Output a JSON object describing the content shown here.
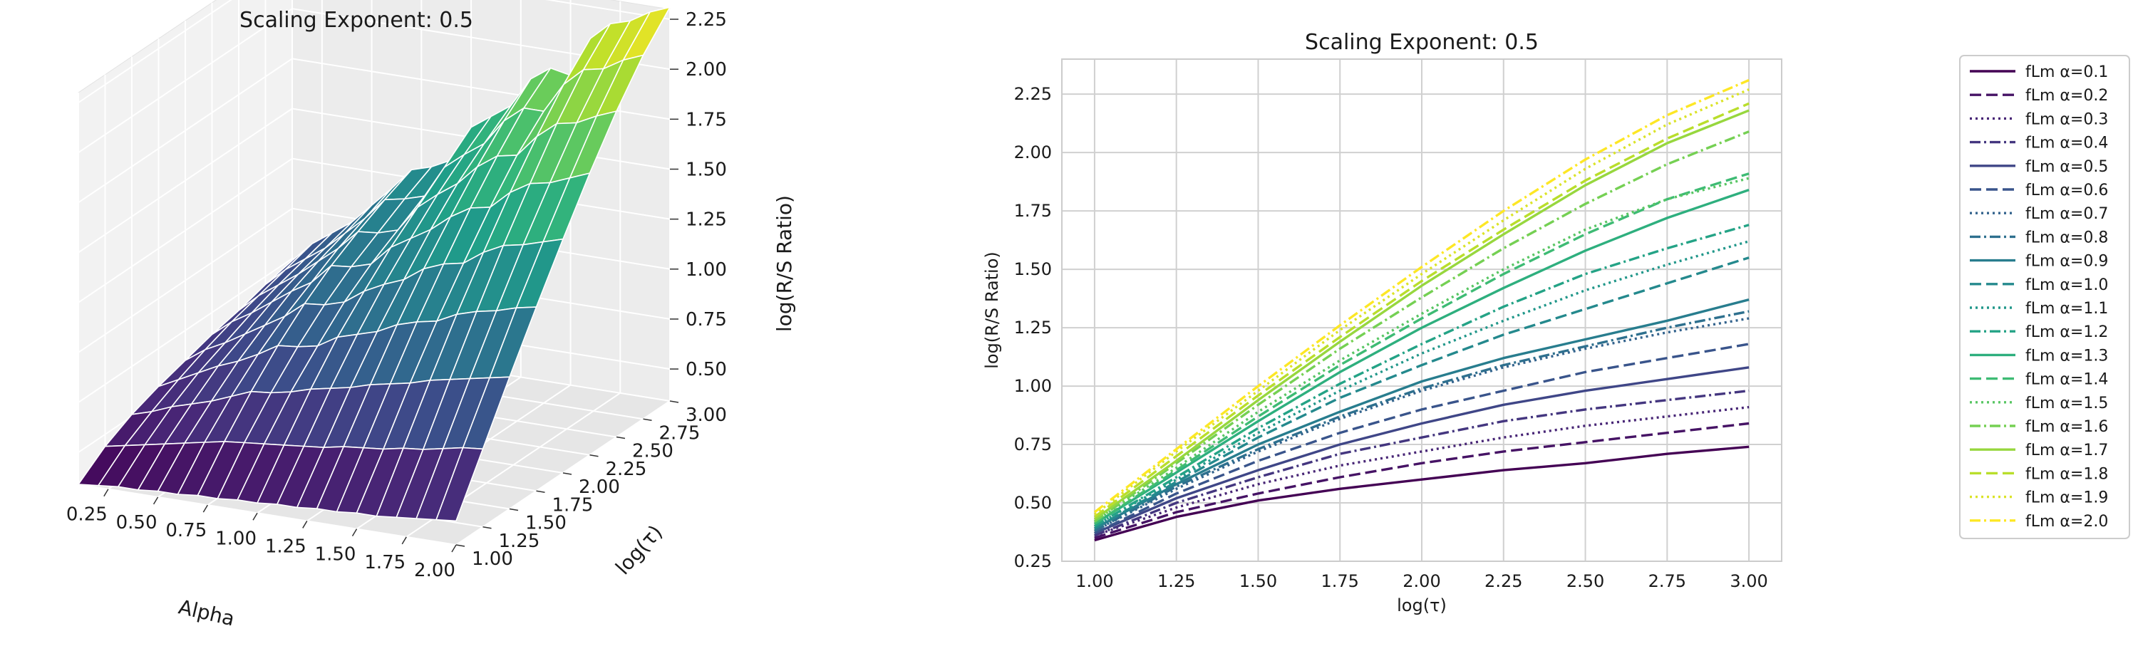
{
  "chart_data": [
    {
      "type": "surface3d",
      "title": "Scaling Exponent: 0.5",
      "xlabel": "Alpha",
      "ylabel": "log(τ)",
      "zlabel": "log(R/S Ratio)",
      "xticks": [
        "0.25",
        "0.50",
        "0.75",
        "1.00",
        "1.25",
        "1.50",
        "1.75",
        "2.00"
      ],
      "yticks": [
        "1.00",
        "1.25",
        "1.50",
        "1.75",
        "2.00",
        "2.25",
        "2.50",
        "2.75",
        "3.00"
      ],
      "zticks": [
        "0.50",
        "0.75",
        "1.00",
        "1.25",
        "1.50",
        "1.75",
        "2.00",
        "2.25"
      ],
      "xlim": [
        0.1,
        2.0
      ],
      "ylim": [
        1.0,
        3.0
      ],
      "zlim": [
        0.34,
        2.3
      ],
      "colormap": "viridis",
      "alpha_values": [
        0.1,
        0.2,
        0.3,
        0.4,
        0.5,
        0.6,
        0.7,
        0.8,
        0.9,
        1.0,
        1.1,
        1.2,
        1.3,
        1.4,
        1.5,
        1.6,
        1.7,
        1.8,
        1.9,
        2.0
      ],
      "log_tau_values": [
        1.0,
        1.25,
        1.5,
        1.75,
        2.0,
        2.25,
        2.5,
        2.75,
        3.0
      ]
    },
    {
      "type": "line",
      "title": "Scaling Exponent: 0.5",
      "xlabel": "log(τ)",
      "ylabel": "log(R/S Ratio)",
      "xlim": [
        0.9,
        3.1
      ],
      "ylim": [
        0.25,
        2.4
      ],
      "xticks": [
        1.0,
        1.25,
        1.5,
        1.75,
        2.0,
        2.25,
        2.5,
        2.75,
        3.0
      ],
      "yticks": [
        0.25,
        0.5,
        0.75,
        1.0,
        1.25,
        1.5,
        1.75,
        2.0,
        2.25
      ],
      "x": [
        1.0,
        1.25,
        1.5,
        1.75,
        2.0,
        2.25,
        2.5,
        2.75,
        3.0
      ],
      "grid": true,
      "legend": "outside-right",
      "colormap": "viridis",
      "series": [
        {
          "name": "fLm α=0.1",
          "dash": "solid",
          "values": [
            0.34,
            0.44,
            0.51,
            0.56,
            0.6,
            0.64,
            0.67,
            0.71,
            0.74
          ]
        },
        {
          "name": "fLm α=0.2",
          "dash": "dashed",
          "values": [
            0.35,
            0.46,
            0.54,
            0.61,
            0.67,
            0.72,
            0.76,
            0.8,
            0.84
          ]
        },
        {
          "name": "fLm α=0.3",
          "dash": "dotted",
          "values": [
            0.36,
            0.48,
            0.58,
            0.66,
            0.72,
            0.78,
            0.83,
            0.87,
            0.91
          ]
        },
        {
          "name": "fLm α=0.4",
          "dash": "dashdot",
          "values": [
            0.36,
            0.5,
            0.61,
            0.71,
            0.78,
            0.85,
            0.9,
            0.94,
            0.98
          ]
        },
        {
          "name": "fLm α=0.5",
          "dash": "solid",
          "values": [
            0.37,
            0.52,
            0.64,
            0.75,
            0.84,
            0.92,
            0.98,
            1.03,
            1.08
          ]
        },
        {
          "name": "fLm α=0.6",
          "dash": "dashed",
          "values": [
            0.37,
            0.54,
            0.68,
            0.8,
            0.9,
            0.98,
            1.06,
            1.12,
            1.18
          ]
        },
        {
          "name": "fLm α=0.7",
          "dash": "dotted",
          "values": [
            0.38,
            0.56,
            0.72,
            0.86,
            0.98,
            1.08,
            1.16,
            1.23,
            1.29
          ]
        },
        {
          "name": "fLm α=0.8",
          "dash": "dashdot",
          "values": [
            0.38,
            0.57,
            0.73,
            0.87,
            0.99,
            1.09,
            1.17,
            1.25,
            1.32
          ]
        },
        {
          "name": "fLm α=0.9",
          "dash": "solid",
          "values": [
            0.39,
            0.58,
            0.75,
            0.89,
            1.02,
            1.12,
            1.2,
            1.28,
            1.37
          ]
        },
        {
          "name": "fLm α=1.0",
          "dash": "dashed",
          "values": [
            0.39,
            0.59,
            0.78,
            0.95,
            1.09,
            1.22,
            1.33,
            1.44,
            1.55
          ]
        },
        {
          "name": "fLm α=1.1",
          "dash": "dotted",
          "values": [
            0.4,
            0.6,
            0.8,
            0.98,
            1.14,
            1.28,
            1.41,
            1.52,
            1.62
          ]
        },
        {
          "name": "fLm α=1.2",
          "dash": "dashdot",
          "values": [
            0.4,
            0.61,
            0.82,
            1.01,
            1.18,
            1.34,
            1.48,
            1.59,
            1.69
          ]
        },
        {
          "name": "fLm α=1.3",
          "dash": "solid",
          "values": [
            0.41,
            0.63,
            0.85,
            1.06,
            1.25,
            1.42,
            1.58,
            1.72,
            1.84
          ]
        },
        {
          "name": "fLm α=1.4",
          "dash": "dashed",
          "values": [
            0.41,
            0.64,
            0.87,
            1.09,
            1.29,
            1.48,
            1.65,
            1.8,
            1.91
          ]
        },
        {
          "name": "fLm α=1.5",
          "dash": "dotted",
          "values": [
            0.42,
            0.65,
            0.89,
            1.11,
            1.31,
            1.5,
            1.67,
            1.8,
            1.89
          ]
        },
        {
          "name": "fLm α=1.6",
          "dash": "dashdot",
          "values": [
            0.42,
            0.67,
            0.92,
            1.16,
            1.38,
            1.59,
            1.78,
            1.95,
            2.09
          ]
        },
        {
          "name": "fLm α=1.7",
          "dash": "solid",
          "values": [
            0.43,
            0.68,
            0.94,
            1.19,
            1.43,
            1.65,
            1.86,
            2.04,
            2.18
          ]
        },
        {
          "name": "fLm α=1.8",
          "dash": "dashed",
          "values": [
            0.44,
            0.7,
            0.96,
            1.21,
            1.45,
            1.67,
            1.88,
            2.06,
            2.21
          ]
        },
        {
          "name": "fLm α=1.9",
          "dash": "dotted",
          "values": [
            0.45,
            0.72,
            0.98,
            1.24,
            1.48,
            1.71,
            1.93,
            2.12,
            2.27
          ]
        },
        {
          "name": "fLm α=2.0",
          "dash": "dashdot",
          "values": [
            0.46,
            0.73,
            1.0,
            1.26,
            1.51,
            1.75,
            1.97,
            2.16,
            2.31
          ]
        }
      ]
    }
  ]
}
